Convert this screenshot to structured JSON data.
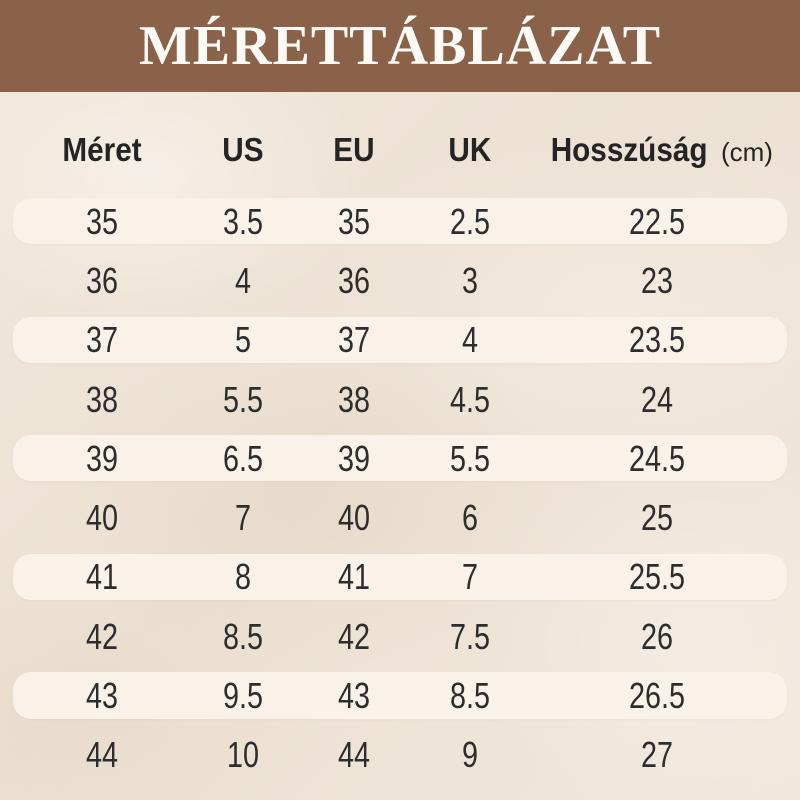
{
  "title": "MÉRETTÁBLÁZAT",
  "colors": {
    "banner_brown": "#8A6249",
    "background_beige": "#EDE3D6",
    "row_band": "#F8F2E9",
    "text_dark": "#2d2d2d",
    "title_white": "#FCFAF6"
  },
  "table": {
    "columns": [
      {
        "key": "size",
        "label": "Méret"
      },
      {
        "key": "us",
        "label": "US"
      },
      {
        "key": "eu",
        "label": "EU"
      },
      {
        "key": "uk",
        "label": "UK"
      },
      {
        "key": "length",
        "label": "Hosszúság",
        "unit": "(cm)"
      }
    ]
  },
  "chart_data": {
    "type": "table",
    "title": "MÉRETTÁBLÁZAT",
    "columns": [
      "Méret",
      "US",
      "EU",
      "UK",
      "Hosszúság (cm)"
    ],
    "rows": [
      [
        "35",
        "3.5",
        "35",
        "2.5",
        "22.5"
      ],
      [
        "36",
        "4",
        "36",
        "3",
        "23"
      ],
      [
        "37",
        "5",
        "37",
        "4",
        "23.5"
      ],
      [
        "38",
        "5.5",
        "38",
        "4.5",
        "24"
      ],
      [
        "39",
        "6.5",
        "39",
        "5.5",
        "24.5"
      ],
      [
        "40",
        "7",
        "40",
        "6",
        "25"
      ],
      [
        "41",
        "8",
        "41",
        "7",
        "25.5"
      ],
      [
        "42",
        "8.5",
        "42",
        "7.5",
        "26"
      ],
      [
        "43",
        "9.5",
        "43",
        "8.5",
        "26.5"
      ],
      [
        "44",
        "10",
        "44",
        "9",
        "27"
      ]
    ]
  }
}
